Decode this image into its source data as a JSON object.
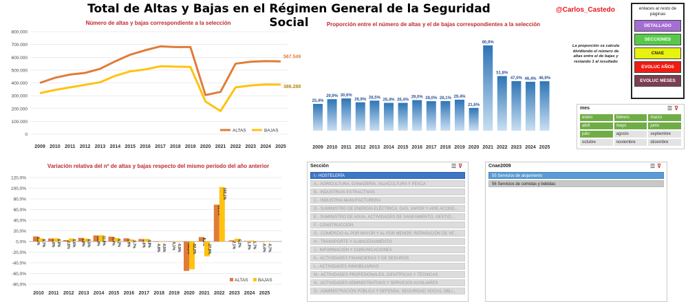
{
  "header": {
    "title": "Total de Altas y Bajas en el Régimen General de la Seguridad Social",
    "author": "@Carlos_Castedo"
  },
  "links": {
    "title": "enlaces al resto de páginas",
    "buttons": [
      {
        "label": "DETALLADO",
        "color": "#a46ed3",
        "text_color": "#ffffff"
      },
      {
        "label": "SECCIONES",
        "color": "#58c94a",
        "text_color": "#ffffff"
      },
      {
        "label": "CNAE",
        "color": "#e8f20f",
        "text_color": "#222222"
      },
      {
        "label": "EVOLUC AÑOS",
        "color": "#f01c12",
        "text_color": "#ffffff"
      },
      {
        "label": "EVOLUC MESES",
        "color": "#7b3f52",
        "text_color": "#ffffff"
      }
    ]
  },
  "note": "La proporción se calcula dividiendo el número de altas entre el de bajas y restando 1 al resultado",
  "slicers": {
    "mes": {
      "title": "mes",
      "months": [
        {
          "label": "enero",
          "selected": true
        },
        {
          "label": "febrero",
          "selected": true
        },
        {
          "label": "marzo",
          "selected": true
        },
        {
          "label": "abril",
          "selected": true
        },
        {
          "label": "mayo",
          "selected": true
        },
        {
          "label": "junio",
          "selected": true
        },
        {
          "label": "julio",
          "selected": true
        },
        {
          "label": "agosto",
          "selected": false
        },
        {
          "label": "septiembre",
          "selected": false
        },
        {
          "label": "octubre",
          "selected": false
        },
        {
          "label": "noviembre",
          "selected": false
        },
        {
          "label": "diciembre",
          "selected": false
        }
      ]
    },
    "seccion": {
      "title": "Sección",
      "items": [
        {
          "label": "I.- HOSTELERÍA",
          "selected": true
        },
        {
          "label": "A.- AGRICULTURA, GANADERÍA, SILVICULTURA Y PESCA",
          "selected": false
        },
        {
          "label": "B.- INDUSTRIAS EXTRACTIVAS",
          "selected": false
        },
        {
          "label": "C.- INDUSTRIA MANUFACTURERA",
          "selected": false
        },
        {
          "label": "D.- SUMINISTRO DE ENERGÍA ELÉCTRICA, GAS, VAPOR Y AIRE ACOND...",
          "selected": false
        },
        {
          "label": "E.- SUMINISTRO DE AGUA, ACTIVIDADES DE SANEAMIENTO, GESTIÓ...",
          "selected": false
        },
        {
          "label": "F.- CONSTRUCCIÓN",
          "selected": false
        },
        {
          "label": "G.- COMERCIO AL POR MAYOR Y AL POR MENOR; REPARACIÓN DE VE...",
          "selected": false
        },
        {
          "label": "H.- TRANSPORTE Y ALMACENAMIENTO",
          "selected": false
        },
        {
          "label": "J.- INFORMACIÓN Y COMUNICACIONES",
          "selected": false
        },
        {
          "label": "K.- ACTIVIDADES FINANCIERAS Y DE SEGUROS",
          "selected": false
        },
        {
          "label": "L.- ACTIVIDADES INMOBILIARIAS",
          "selected": false
        },
        {
          "label": "M.- ACTIVIDADES PROFESIONALES, CIENTÍFICAS Y TÉCNICAS",
          "selected": false
        },
        {
          "label": "N.- ACTIVIDADES ADMINISTRATIVAS Y SERVICIOS AUXILIARES",
          "selected": false
        },
        {
          "label": "O.- ADMINISTRACIÓN PÚBLICA Y DEFENSA; SEGURIDAD SOCIAL OBLI...",
          "selected": false
        }
      ]
    },
    "cnae": {
      "title": "Cnae2009",
      "items": [
        {
          "label": "55 Servicios de alojamiento",
          "selected": true
        },
        {
          "label": "56 Servicios de comidas y bebidas",
          "selected": false
        }
      ]
    }
  },
  "colors": {
    "altas": "#e07b39",
    "bajas": "#ffc20e",
    "bar": "#5b9bd5",
    "bar_label": "#2f5597"
  },
  "chart_data": [
    {
      "type": "line",
      "title": "Número de altas y bajas correspondiente a la selección",
      "x": [
        "2009",
        "2010",
        "2011",
        "2012",
        "2013",
        "2014",
        "2015",
        "2016",
        "2017",
        "2018",
        "2019",
        "2020",
        "2021",
        "2022",
        "2023",
        "2024",
        "2025"
      ],
      "ylim": [
        0,
        800000
      ],
      "yticks": [
        "0",
        "100.000",
        "200.000",
        "300.000",
        "400.000",
        "500.000",
        "600.000",
        "700.000",
        "800.000"
      ],
      "series": [
        {
          "name": "ALTAS",
          "values": [
            400000,
            440000,
            465000,
            478000,
            510000,
            568000,
            620000,
            655000,
            685000,
            680000,
            680000,
            305000,
            330000,
            550000,
            565000,
            570000,
            567549
          ]
        },
        {
          "name": "BAJAS",
          "values": [
            320000,
            345000,
            365000,
            385000,
            405000,
            455000,
            490000,
            505000,
            530000,
            527000,
            525000,
            255000,
            180000,
            365000,
            380000,
            388000,
            386288
          ]
        }
      ],
      "end_labels": {
        "altas": "567.549",
        "bajas": "386.288"
      },
      "legend": "bottom-right"
    },
    {
      "type": "bar",
      "title": "Proporción entre el número de altas y el de bajas correspondientes a la selección",
      "categories": [
        "2009",
        "2010",
        "2011",
        "2012",
        "2013",
        "2014",
        "2015",
        "2016",
        "2017",
        "2018",
        "2019",
        "2020",
        "2021",
        "2022",
        "2023",
        "2024",
        "2025"
      ],
      "values": [
        25.4,
        29.9,
        30.6,
        26.9,
        28.5,
        26.4,
        26.4,
        29.0,
        28.0,
        28.1,
        29.4,
        21.6,
        80.9,
        51.8,
        47.0,
        46.4,
        46.9
      ],
      "labels": [
        "25,4%",
        "29,9%",
        "30,6%",
        "26,9%",
        "28,5%",
        "26,4%",
        "26,4%",
        "29,0%",
        "28,0%",
        "28,1%",
        "29,4%",
        "21,6%",
        "80,9%",
        "51,8%",
        "47,0%",
        "46,4%",
        "46,9%"
      ],
      "ylim": [
        0,
        90
      ]
    },
    {
      "type": "bar",
      "title": "Variación relativa del nº de altas y bajas respecto del mismo periodo del año anterior",
      "categories": [
        "2010",
        "2011",
        "2012",
        "2013",
        "2014",
        "2015",
        "2016",
        "2017",
        "2018",
        "2019",
        "2020",
        "2021",
        "2022",
        "2023",
        "2024",
        "2025"
      ],
      "ylim": [
        -80,
        120
      ],
      "yticks": [
        "-80,0%",
        "-60,0%",
        "-40,0%",
        "-20,0%",
        "0,0%",
        "20,0%",
        "40,0%",
        "60,0%",
        "80,0%",
        "100,0%",
        "120,0%"
      ],
      "series": [
        {
          "name": "ALTAS",
          "values": [
            9.5,
            5.6,
            2.6,
            6.8,
            11.3,
            9.0,
            5.9,
            4.6,
            -0.8,
            0.1,
            -55.2,
            8.2,
            69.1,
            2.1,
            1.0,
            -0.4
          ],
          "labels": [
            "9,5%",
            "5,6%",
            "2,6%",
            "6,8%",
            "11,3%",
            "9,0%",
            "5,9%",
            "4,6%",
            "-0,8%",
            "0,1%",
            "-55,2%",
            "8,2%",
            "69,1%",
            "2,1%",
            "1,0%",
            "-0,4%"
          ]
        },
        {
          "name": "BAJAS",
          "values": [
            5.7,
            6.0,
            5.6,
            5.5,
            11.8,
            6.2,
            3.7,
            4.8,
            -0.5,
            -0.9,
            -52.2,
            -27.9,
            102.1,
            5.2,
            1.7,
            -0.7
          ],
          "labels": [
            "5,7%",
            "6,0%",
            "5,6%",
            "5,5%",
            "11,8%",
            "6,2%",
            "3,7%",
            "4,8%",
            "-0,5%",
            "-0,9%",
            "-52,2%",
            "-27,9%",
            "102,1%",
            "5,2%",
            "1,7%",
            "-0,7%"
          ]
        }
      ],
      "legend": "bottom-right"
    }
  ]
}
